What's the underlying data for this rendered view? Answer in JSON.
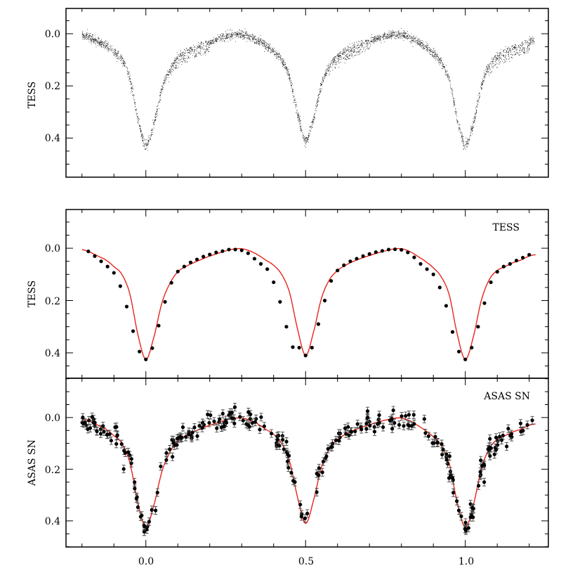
{
  "chart_data": [
    {
      "type": "scatter",
      "panel": "top",
      "ylabel": "TESS",
      "xlim": [
        -0.25,
        1.26
      ],
      "ylim": [
        -0.097,
        0.55
      ],
      "yticks": [
        "0.0",
        "0.2",
        "0.4"
      ],
      "yinverted": true,
      "description_points": "dense raw TESS photometry following the folded light curve",
      "noise_sigma": 0.008,
      "point_color": "#000000"
    },
    {
      "type": "line",
      "panel": "middle",
      "ylabel": "TESS",
      "legend": "TESS",
      "legend_position": "top-right",
      "xlim": [
        -0.25,
        1.26
      ],
      "ylim": [
        -0.148,
        0.497
      ],
      "yticks": [
        "0.0",
        "0.2",
        "0.4"
      ],
      "yinverted": true,
      "binned_points": {
        "x": [
          -0.18,
          -0.16,
          -0.14,
          -0.12,
          -0.1,
          -0.08,
          -0.06,
          -0.04,
          -0.02,
          0.0,
          0.02,
          0.04,
          0.06,
          0.08,
          0.1,
          0.12,
          0.14,
          0.16,
          0.18,
          0.2,
          0.22,
          0.24,
          0.26,
          0.28,
          0.3,
          0.32,
          0.34,
          0.36,
          0.38,
          0.4,
          0.42,
          0.44,
          0.46,
          0.48,
          0.5,
          0.52,
          0.54,
          0.56,
          0.58,
          0.6,
          0.62,
          0.64,
          0.66,
          0.68,
          0.7,
          0.72,
          0.74,
          0.76,
          0.78,
          0.8,
          0.82,
          0.84,
          0.86,
          0.88,
          0.9,
          0.92,
          0.94,
          0.96,
          0.98,
          1.0,
          1.02,
          1.04,
          1.06,
          1.08,
          1.1,
          1.12,
          1.14,
          1.16,
          1.18,
          1.2
        ],
        "y": [
          0.012,
          0.03,
          0.05,
          0.07,
          0.094,
          0.145,
          0.223,
          0.317,
          0.395,
          0.425,
          0.382,
          0.296,
          0.205,
          0.132,
          0.089,
          0.07,
          0.054,
          0.043,
          0.032,
          0.024,
          0.016,
          0.011,
          0.005,
          0.005,
          0.008,
          0.019,
          0.04,
          0.06,
          0.08,
          0.13,
          0.205,
          0.3,
          0.378,
          0.38,
          0.41,
          0.38,
          0.29,
          0.2,
          0.125,
          0.085,
          0.065,
          0.05,
          0.04,
          0.03,
          0.022,
          0.015,
          0.01,
          0.005,
          0.004,
          0.006,
          0.016,
          0.035,
          0.06,
          0.08,
          0.1,
          0.15,
          0.22,
          0.32,
          0.395,
          0.425,
          0.38,
          0.3,
          0.21,
          0.13,
          0.09,
          0.07,
          0.06,
          0.047,
          0.036,
          0.025
        ]
      },
      "model": {
        "color": "#e8251c",
        "x": [
          -0.2,
          -0.175,
          -0.15,
          -0.125,
          -0.1,
          -0.075,
          -0.05,
          -0.025,
          0,
          0.025,
          0.05,
          0.075,
          0.1,
          0.125,
          0.15,
          0.175,
          0.2,
          0.225,
          0.25,
          0.275,
          0.3,
          0.325,
          0.35,
          0.375,
          0.4,
          0.425,
          0.45,
          0.475,
          0.5,
          0.525,
          0.55,
          0.575,
          0.6,
          0.625,
          0.65,
          0.675,
          0.7,
          0.725,
          0.75,
          0.775,
          0.8,
          0.825,
          0.85,
          0.875,
          0.9,
          0.925,
          0.95,
          0.975,
          1.0,
          1.025,
          1.05,
          1.075,
          1.1,
          1.125,
          1.15,
          1.175,
          1.2,
          1.22
        ],
        "y": [
          0.005,
          0.015,
          0.03,
          0.045,
          0.07,
          0.1,
          0.175,
          0.33,
          0.425,
          0.34,
          0.21,
          0.135,
          0.09,
          0.07,
          0.055,
          0.042,
          0.03,
          0.02,
          0.01,
          0.003,
          0.002,
          0.01,
          0.025,
          0.045,
          0.065,
          0.1,
          0.17,
          0.31,
          0.41,
          0.32,
          0.19,
          0.12,
          0.085,
          0.065,
          0.05,
          0.038,
          0.028,
          0.018,
          0.01,
          0.003,
          0.002,
          0.012,
          0.03,
          0.05,
          0.075,
          0.11,
          0.18,
          0.33,
          0.425,
          0.34,
          0.2,
          0.12,
          0.085,
          0.07,
          0.055,
          0.045,
          0.03,
          0.025
        ]
      }
    },
    {
      "type": "scatter",
      "panel": "bottom",
      "ylabel": "ASAS SN",
      "legend": "ASAS SN",
      "legend_position": "top-right",
      "xlabel": "",
      "xlim": [
        -0.25,
        1.26
      ],
      "xticks": [
        "0.0",
        "0.5",
        "1.0"
      ],
      "ylim": [
        -0.152,
        0.501
      ],
      "yticks": [
        "0.0",
        "0.2",
        "0.4"
      ],
      "yinverted": true,
      "noise_sigma": 0.02,
      "error_bar": 0.015,
      "model_color": "#e8251c"
    }
  ]
}
